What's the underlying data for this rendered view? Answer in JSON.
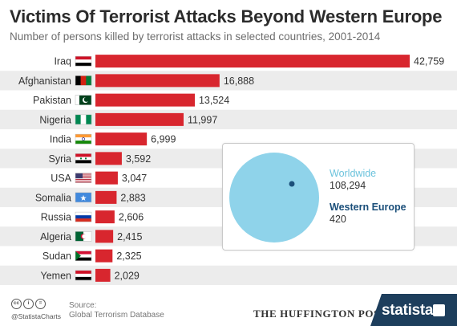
{
  "title": "Victims Of Terrorist Attacks Beyond Western Europe",
  "subtitle": "Number of persons killed by terrorist attacks in selected countries, 2001-2014",
  "chart_data": {
    "type": "bar",
    "orientation": "horizontal",
    "categories": [
      "Iraq",
      "Afghanistan",
      "Pakistan",
      "Nigeria",
      "India",
      "Syria",
      "USA",
      "Somalia",
      "Russia",
      "Algeria",
      "Sudan",
      "Yemen"
    ],
    "values": [
      42759,
      16888,
      13524,
      11997,
      6999,
      3592,
      3047,
      2883,
      2606,
      2415,
      2325,
      2029
    ],
    "value_labels": [
      "42,759",
      "16,888",
      "13,524",
      "11,997",
      "6,999",
      "3,592",
      "3,047",
      "2,883",
      "2,606",
      "2,415",
      "2,325",
      "2,029"
    ],
    "bar_color": "#d8262e",
    "stripe_color": "#ececec",
    "grid": false,
    "legend": "none",
    "title": "Victims Of Terrorist Attacks Beyond Western Europe",
    "xlabel": "",
    "ylabel": ""
  },
  "flag_icons": [
    "flag-iraq-icon",
    "flag-afghanistan-icon",
    "flag-pakistan-icon",
    "flag-nigeria-icon",
    "flag-india-icon",
    "flag-syria-icon",
    "flag-usa-icon",
    "flag-somalia-icon",
    "flag-russia-icon",
    "flag-algeria-icon",
    "flag-sudan-icon",
    "flag-yemen-icon"
  ],
  "inset": {
    "worldwide_label": "Worldwide",
    "worldwide_value": "108,294",
    "worldwide_number": 108294,
    "worldwide_color": "#8fd3ea",
    "western_europe_label": "Western Europe",
    "western_europe_value": "420",
    "western_europe_number": 420,
    "western_europe_color": "#1b4f7a"
  },
  "footer": {
    "license_icons": [
      "cc",
      "i",
      "="
    ],
    "handle": "@StatistaCharts",
    "source_label": "Source:",
    "source_value": "Global Terrorism Database",
    "partner": "THE HUFFINGTON POST",
    "brand": "statista",
    "brand_color": "#1d3e5c"
  }
}
